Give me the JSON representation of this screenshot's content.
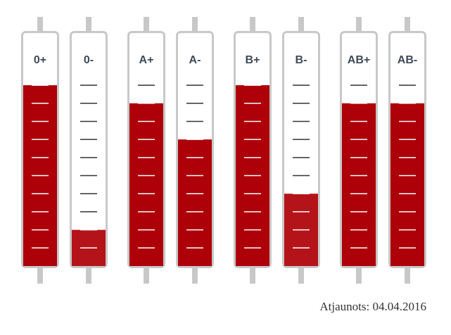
{
  "chart_data": {
    "type": "bar",
    "categories": [
      "0+",
      "0-",
      "A+",
      "A-",
      "B+",
      "B-",
      "AB+",
      "AB-"
    ],
    "values": [
      10,
      2,
      9,
      7,
      10,
      4,
      9,
      9
    ],
    "colors": [
      "#ad0008",
      "#b5131a",
      "#ad0008",
      "#ad0008",
      "#ad0008",
      "#b5131a",
      "#ad0008",
      "#ad0008"
    ],
    "ylim": [
      0,
      13
    ],
    "yticks": [
      1,
      2,
      3,
      4,
      5,
      6,
      7,
      8,
      9,
      10
    ],
    "annotation": "Atjaunots: 04.04.2016"
  }
}
